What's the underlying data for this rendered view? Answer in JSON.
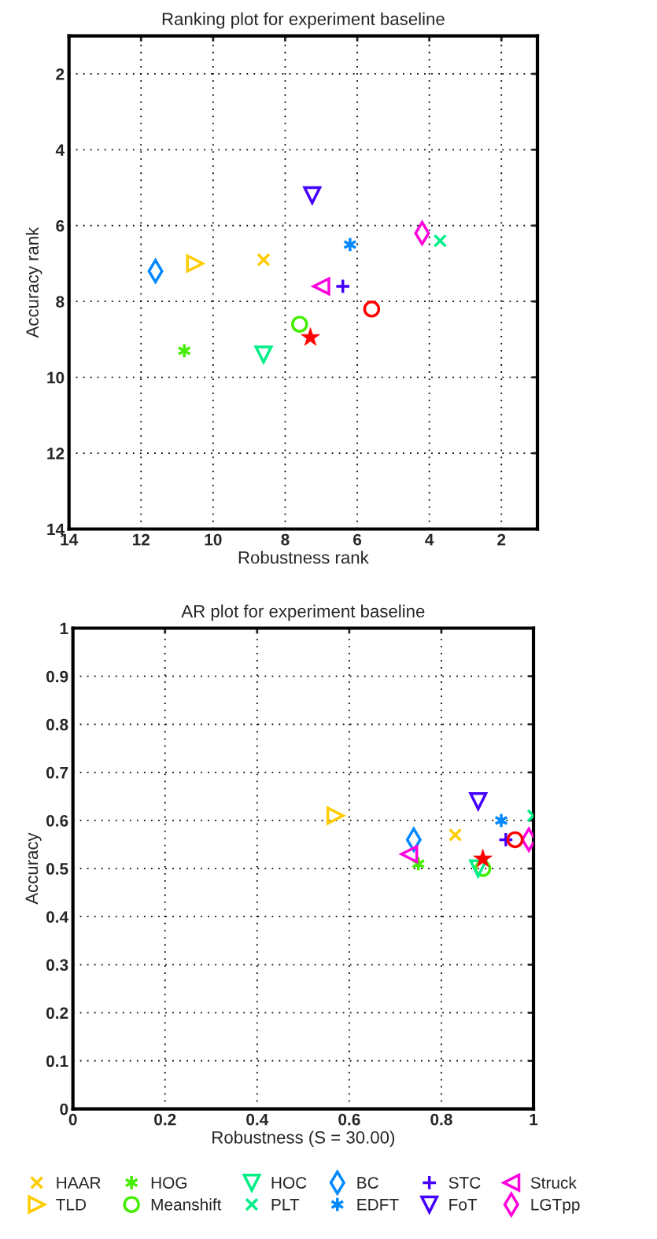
{
  "chart_data": [
    {
      "type": "scatter",
      "title": "Ranking plot for experiment baseline",
      "xlabel": "Robustness rank",
      "ylabel": "Accuracy rank",
      "xlim": [
        14,
        1
      ],
      "ylim": [
        14,
        1
      ],
      "xticks": [
        14,
        12,
        10,
        8,
        6,
        4,
        2
      ],
      "yticks": [
        2,
        4,
        6,
        8,
        10,
        12,
        14
      ],
      "grid": true,
      "series": [
        {
          "color": "#ffcc00",
          "marker": "x",
          "x": [
            8.6
          ],
          "values": [
            6.9
          ]
        },
        {
          "color": "#ffcc00",
          "marker": "triangle_right",
          "x": [
            10.5
          ],
          "values": [
            7.0
          ]
        },
        {
          "color": "#44ee00",
          "marker": "cross",
          "x": [
            10.8
          ],
          "values": [
            9.3
          ]
        },
        {
          "color": "#44ee00",
          "marker": "circle",
          "x": [
            7.6
          ],
          "values": [
            8.6
          ]
        },
        {
          "color": "#00ee88",
          "marker": "triangle_down",
          "x": [
            8.6
          ],
          "values": [
            9.4
          ]
        },
        {
          "color": "#00ee88",
          "marker": "x",
          "x": [
            3.7
          ],
          "values": [
            6.4
          ]
        },
        {
          "color": "#0088ff",
          "marker": "diamond",
          "x": [
            11.6
          ],
          "values": [
            7.2
          ]
        },
        {
          "color": "#0088ff",
          "marker": "cross",
          "x": [
            6.2
          ],
          "values": [
            6.5
          ]
        },
        {
          "color": "#4400ff",
          "marker": "plus",
          "x": [
            6.4
          ],
          "values": [
            7.6
          ]
        },
        {
          "color": "#4400ff",
          "marker": "triangle_down",
          "x": [
            7.25
          ],
          "values": [
            5.2
          ]
        },
        {
          "color": "#ff00dd",
          "marker": "triangle_left",
          "x": [
            7.0
          ],
          "values": [
            7.6
          ]
        },
        {
          "color": "#ff00dd",
          "marker": "diamond",
          "x": [
            4.2
          ],
          "values": [
            6.2
          ]
        },
        {
          "color": "#ff0000",
          "marker": "circle",
          "x": [
            5.6
          ],
          "values": [
            8.2
          ]
        },
        {
          "color": "#ff0000",
          "marker": "star",
          "x": [
            7.3
          ],
          "values": [
            8.95
          ]
        }
      ]
    },
    {
      "type": "scatter",
      "title": "AR plot for experiment baseline",
      "xlabel": "Robustness (S = 30.00)",
      "ylabel": "Accuracy",
      "xlim": [
        0,
        1
      ],
      "ylim": [
        0,
        1
      ],
      "xticks": [
        0,
        0.2,
        0.4,
        0.6,
        0.8,
        1
      ],
      "yticks": [
        0,
        0.1,
        0.2,
        0.3,
        0.4,
        0.5,
        0.6,
        0.7,
        0.8,
        0.9,
        1
      ],
      "grid": true,
      "legend": "bottom",
      "series": [
        {
          "name": "HAAR",
          "color": "#ffcc00",
          "marker": "x",
          "x": [
            0.83
          ],
          "values": [
            0.57
          ]
        },
        {
          "name": "TLD",
          "color": "#ffcc00",
          "marker": "triangle_right",
          "x": [
            0.57
          ],
          "values": [
            0.61
          ]
        },
        {
          "name": "HOG",
          "color": "#44ee00",
          "marker": "cross",
          "x": [
            0.75
          ],
          "values": [
            0.51
          ]
        },
        {
          "name": "Meanshift",
          "color": "#44ee00",
          "marker": "circle",
          "x": [
            0.89
          ],
          "values": [
            0.5
          ]
        },
        {
          "name": "HOC",
          "color": "#00ee88",
          "marker": "triangle_down",
          "x": [
            0.88
          ],
          "values": [
            0.5
          ]
        },
        {
          "name": "PLT",
          "color": "#00ee88",
          "marker": "x",
          "x": [
            1.0
          ],
          "values": [
            0.61
          ]
        },
        {
          "name": "BC",
          "color": "#0088ff",
          "marker": "diamond",
          "x": [
            0.74
          ],
          "values": [
            0.56
          ]
        },
        {
          "name": "EDFT",
          "color": "#0088ff",
          "marker": "cross",
          "x": [
            0.93
          ],
          "values": [
            0.6
          ]
        },
        {
          "name": "STC",
          "color": "#4400ff",
          "marker": "plus",
          "x": [
            0.94
          ],
          "values": [
            0.56
          ]
        },
        {
          "name": "FoT",
          "color": "#4400ff",
          "marker": "triangle_down",
          "x": [
            0.88
          ],
          "values": [
            0.64
          ]
        },
        {
          "name": "Struck",
          "color": "#ff00dd",
          "marker": "triangle_left",
          "x": [
            0.73
          ],
          "values": [
            0.53
          ]
        },
        {
          "name": "LGTpp",
          "color": "#ff00dd",
          "marker": "diamond",
          "x": [
            0.99
          ],
          "values": [
            0.56
          ]
        },
        {
          "color": "#ff0000",
          "marker": "circle",
          "x": [
            0.96
          ],
          "values": [
            0.56
          ]
        },
        {
          "color": "#ff0000",
          "marker": "star",
          "x": [
            0.89
          ],
          "values": [
            0.52
          ]
        }
      ]
    }
  ]
}
